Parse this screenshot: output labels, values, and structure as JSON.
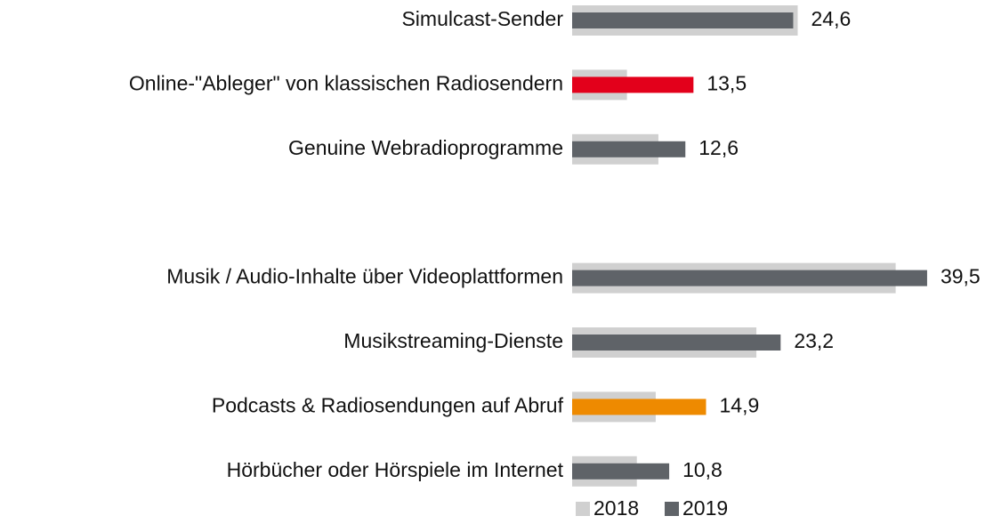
{
  "chart_data": {
    "type": "bar",
    "orientation": "horizontal",
    "categories": [
      "Simulcast-Sender",
      "Online-\"Ableger\" von klassischen Radiosendern",
      "Genuine Webradioprogramme",
      null,
      "Musik / Audio-Inhalte über Videoplattformen",
      "Musikstreaming-Dienste",
      "Podcasts & Radiosendungen auf Abruf",
      "Hörbücher oder Hörspiele im Internet"
    ],
    "series": [
      {
        "name": "2018",
        "color": "#d0d0d0",
        "values": [
          25.1,
          6.1,
          9.6,
          null,
          36.0,
          20.5,
          9.3,
          7.2
        ]
      },
      {
        "name": "2019",
        "color": "#5f6368",
        "colors": [
          "#5f6368",
          "#e3001b",
          "#5f6368",
          null,
          "#5f6368",
          "#5f6368",
          "#ee8a00",
          "#5f6368"
        ],
        "values": [
          24.6,
          13.5,
          12.6,
          null,
          39.5,
          23.2,
          14.9,
          10.8
        ],
        "value_labels": [
          "24,6",
          "13,5",
          "12,6",
          null,
          "39,5",
          "23,2",
          "14,9",
          "10,8"
        ]
      }
    ],
    "xlim": [
      0,
      40
    ],
    "legend": "bottom"
  }
}
